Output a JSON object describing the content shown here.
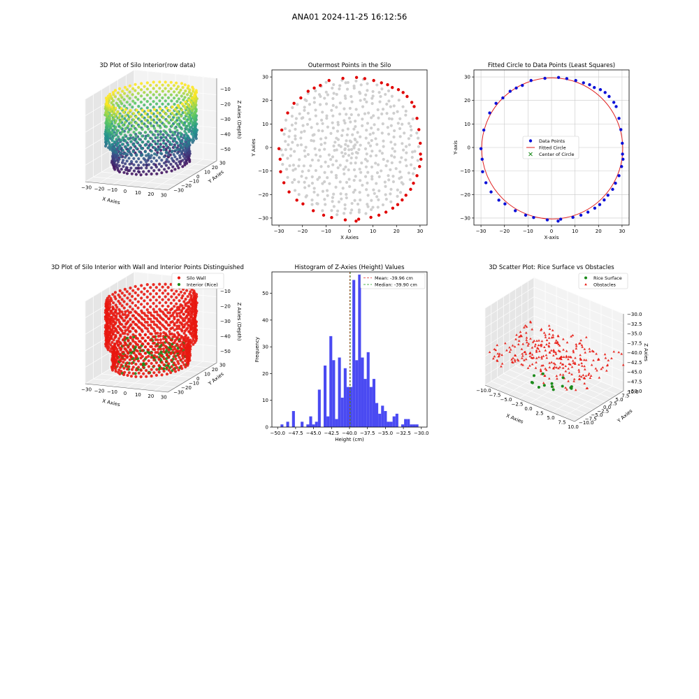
{
  "figure": {
    "title": "ANA01 2024-11-25 16:12:56"
  },
  "colors": {
    "wall": "#e8170f",
    "interior": "#1a8a1a",
    "gray": "#cfcfcf",
    "outer": "#e00000",
    "blue": "#0a10d8",
    "fit": "#e02020",
    "center": "#1a8a1a",
    "hist": "#4a4af2",
    "mean": "#e03030",
    "median": "#1a9a1a",
    "pane": "#f2f2f2"
  },
  "chart_data": [
    {
      "id": "p1",
      "type": "scatter3d",
      "title": "3D Plot of Silo Interior(row data)",
      "xlabel": "X Axies",
      "ylabel": "Y Axies",
      "zlabel": "Z Axies (Depth)",
      "xlim": [
        -32,
        32
      ],
      "ylim": [
        -32,
        32
      ],
      "zlim": [
        -58,
        -3
      ],
      "xticks": [
        -30,
        -20,
        -10,
        0,
        10,
        20,
        30
      ],
      "yticks": [
        -30,
        -20,
        -10,
        0,
        10,
        20,
        30
      ],
      "zticks": [
        -10,
        -20,
        -30,
        -40,
        -50
      ],
      "colormap": "viridis",
      "radius_approx": 30,
      "z_range_approx": [
        -55,
        -8
      ]
    },
    {
      "id": "p2",
      "type": "scatter",
      "title": "Outermost Points in the Silo",
      "xlabel": "X Axies",
      "ylabel": "Y Axies",
      "xlim": [
        -33,
        33
      ],
      "ylim": [
        -33,
        33
      ],
      "xticks": [
        -30,
        -20,
        -10,
        0,
        10,
        20,
        30
      ],
      "yticks": [
        -30,
        -20,
        -10,
        0,
        10,
        20,
        30
      ],
      "outer_points": [
        [
          3.0,
          29.8
        ],
        [
          6.5,
          29.3
        ],
        [
          10.3,
          28.5
        ],
        [
          13.6,
          27.5
        ],
        [
          16.2,
          26.7
        ],
        [
          18.2,
          25.5
        ],
        [
          20.8,
          24.6
        ],
        [
          22.8,
          23.4
        ],
        [
          24.5,
          21.7
        ],
        [
          26.5,
          19.2
        ],
        [
          27.5,
          17.4
        ],
        [
          28.7,
          12.4
        ],
        [
          29.5,
          7.6
        ],
        [
          30.1,
          1.8
        ],
        [
          30.2,
          -2.8
        ],
        [
          30.4,
          -5.0
        ],
        [
          29.8,
          -8.1
        ],
        [
          28.7,
          -12.0
        ],
        [
          27.2,
          -15.2
        ],
        [
          26.0,
          -17.8
        ],
        [
          24.0,
          -20.3
        ],
        [
          22.4,
          -22.3
        ],
        [
          20.5,
          -24.3
        ],
        [
          18.4,
          -25.8
        ],
        [
          15.5,
          -27.5
        ],
        [
          12.5,
          -28.8
        ],
        [
          9.1,
          -29.7
        ],
        [
          3.9,
          -30.5
        ],
        [
          2.8,
          -31.3
        ],
        [
          -1.8,
          -30.8
        ],
        [
          -7.6,
          -29.8
        ],
        [
          -11.0,
          -28.8
        ],
        [
          -15.4,
          -26.9
        ],
        [
          -19.8,
          -24.0
        ],
        [
          -22.4,
          -22.4
        ],
        [
          -25.7,
          -18.9
        ],
        [
          -27.9,
          -15.0
        ],
        [
          -29.3,
          -10.3
        ],
        [
          -29.5,
          -5.0
        ],
        [
          -30.0,
          -0.5
        ],
        [
          -28.8,
          7.4
        ],
        [
          -26.3,
          14.7
        ],
        [
          -23.6,
          18.8
        ],
        [
          -20.7,
          21.1
        ],
        [
          -17.6,
          23.9
        ],
        [
          -15.0,
          25.3
        ],
        [
          -12.4,
          26.4
        ],
        [
          -8.7,
          28.5
        ],
        [
          -2.8,
          29.4
        ]
      ]
    },
    {
      "id": "p3",
      "type": "scatter",
      "title": "Fitted Circle to Data Points (Least Squares)",
      "xlabel": "X-axis",
      "ylabel": "Y-axis",
      "xlim": [
        -33,
        33
      ],
      "ylim": [
        -33,
        33
      ],
      "xticks": [
        -30,
        -20,
        -10,
        0,
        10,
        20,
        30
      ],
      "yticks": [
        -30,
        -20,
        -10,
        0,
        10,
        20,
        30
      ],
      "grid": true,
      "legend_position": "center",
      "legend": [
        "Data Points",
        "Fitted Circle",
        "Center of Circle"
      ],
      "circle": {
        "cx": 0.3,
        "cy": -0.4,
        "r": 30.0
      }
    },
    {
      "id": "p4",
      "type": "scatter3d",
      "title": "3D Plot of Silo Interior with Wall and Interior Points Distinguished",
      "xlabel": "X Axies",
      "ylabel": "Y Axies",
      "zlabel": "Z Axies (Depth)",
      "xlim": [
        -32,
        32
      ],
      "ylim": [
        -32,
        32
      ],
      "zlim": [
        -58,
        -3
      ],
      "xticks": [
        -30,
        -20,
        -10,
        0,
        10,
        20,
        30
      ],
      "yticks": [
        -30,
        -20,
        -10,
        0,
        10,
        20,
        30
      ],
      "zticks": [
        -10,
        -20,
        -30,
        -40,
        -50
      ],
      "legend_position": "upper right",
      "legend": [
        "Silo Wall",
        "Interior (Rice)"
      ]
    },
    {
      "id": "p5",
      "type": "bar",
      "title": "Histogram of Z-Axies (Height) Values",
      "xlabel": "Height (cm)",
      "ylabel": "Frequency",
      "xlim": [
        -50.8,
        -29.2
      ],
      "ylim": [
        0,
        58
      ],
      "xticks": [
        -50.0,
        -47.5,
        -45.0,
        -42.5,
        -40.0,
        -37.5,
        -35.0,
        -32.5,
        -30.0
      ],
      "yticks": [
        0,
        10,
        20,
        30,
        40,
        50
      ],
      "bin_start": -50.0,
      "bin_width": 0.4,
      "counts": [
        0,
        1,
        0,
        2,
        0,
        6,
        0,
        0,
        2,
        0,
        1,
        4,
        1,
        2,
        14,
        0,
        23,
        4,
        34,
        25,
        3,
        26,
        11,
        22,
        15,
        15,
        55,
        25,
        57,
        26,
        18,
        28,
        15,
        18,
        9,
        5,
        8,
        6,
        2,
        2,
        4,
        5,
        0,
        1,
        3,
        3,
        1,
        1,
        1
      ],
      "mean": -39.96,
      "median": -39.9,
      "legend_position": "upper right",
      "legend": [
        "Mean: -39.96 cm",
        "Median: -39.90 cm"
      ]
    },
    {
      "id": "p6",
      "type": "scatter3d",
      "title": "3D Scatter Plot: Rice Surface vs Obstacles",
      "xlabel": "X Axies",
      "ylabel": "Y Axies",
      "zlabel": "Z Axies",
      "xlim": [
        -10,
        10
      ],
      "ylim": [
        -10,
        10
      ],
      "zlim": [
        -50,
        -30
      ],
      "xticks": [
        "-10.0",
        "-7.5",
        "-5.0",
        "-2.5",
        "0.0",
        "2.5",
        "5.0",
        "7.5",
        "10.0"
      ],
      "yticks": [
        "-10.0",
        "-7.5",
        "-5.0",
        "-2.5",
        "0.0",
        "2.5",
        "5.0",
        "7.5",
        "10.0"
      ],
      "zticks": [
        "-30.0",
        "-32.5",
        "-35.0",
        "-37.5",
        "-40.0",
        "-42.5",
        "-45.0",
        "-47.5",
        "-50.0"
      ],
      "legend_position": "upper right",
      "legend": [
        "Rice Surface",
        "Obstacles"
      ]
    }
  ]
}
